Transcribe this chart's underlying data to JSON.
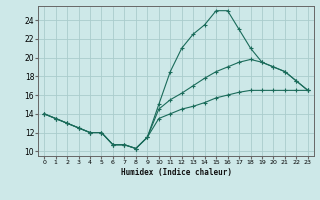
{
  "xlabel": "Humidex (Indice chaleur)",
  "background_color": "#cde8e8",
  "grid_color": "#aacccc",
  "line_color": "#1a6b5a",
  "xlim": [
    -0.5,
    23.5
  ],
  "ylim": [
    9.5,
    25.5
  ],
  "xticks": [
    0,
    1,
    2,
    3,
    4,
    5,
    6,
    7,
    8,
    9,
    10,
    11,
    12,
    13,
    14,
    15,
    16,
    17,
    18,
    19,
    20,
    21,
    22,
    23
  ],
  "yticks": [
    10,
    12,
    14,
    16,
    18,
    20,
    22,
    24
  ],
  "line1_x": [
    0,
    1,
    2,
    3,
    4,
    5,
    6,
    7,
    8,
    9,
    10,
    11,
    12,
    13,
    14,
    15,
    16,
    17,
    18,
    19,
    20,
    21,
    22,
    23
  ],
  "line1_y": [
    14.0,
    13.5,
    13.0,
    12.5,
    12.0,
    12.0,
    10.7,
    10.7,
    10.3,
    11.5,
    15.0,
    18.5,
    21.0,
    22.5,
    23.5,
    25.0,
    25.0,
    23.0,
    21.0,
    19.5,
    19.0,
    18.5,
    17.5,
    16.5
  ],
  "line2_x": [
    0,
    1,
    2,
    3,
    4,
    5,
    6,
    7,
    8,
    9,
    10,
    11,
    12,
    13,
    14,
    15,
    16,
    17,
    18,
    19,
    20,
    21,
    22,
    23
  ],
  "line2_y": [
    14.0,
    13.5,
    13.0,
    12.5,
    12.0,
    12.0,
    10.7,
    10.7,
    10.3,
    11.5,
    14.5,
    15.5,
    16.2,
    17.0,
    17.8,
    18.5,
    19.0,
    19.5,
    19.8,
    19.5,
    19.0,
    18.5,
    17.5,
    16.5
  ],
  "line3_x": [
    0,
    1,
    2,
    3,
    4,
    5,
    6,
    7,
    8,
    9,
    10,
    11,
    12,
    13,
    14,
    15,
    16,
    17,
    18,
    19,
    20,
    21,
    22,
    23
  ],
  "line3_y": [
    14.0,
    13.5,
    13.0,
    12.5,
    12.0,
    12.0,
    10.7,
    10.7,
    10.3,
    11.5,
    13.5,
    14.0,
    14.5,
    14.8,
    15.2,
    15.7,
    16.0,
    16.3,
    16.5,
    16.5,
    16.5,
    16.5,
    16.5,
    16.5
  ]
}
